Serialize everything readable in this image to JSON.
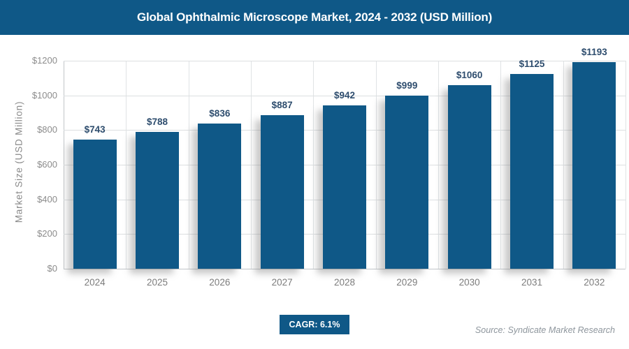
{
  "header": {
    "title": "Global Ophthalmic Microscope Market, 2024 - 2032 (USD Million)"
  },
  "chart_data": {
    "type": "bar",
    "title": "Global Ophthalmic Microscope Market, 2024 - 2032 (USD Million)",
    "categories": [
      "2024",
      "2025",
      "2026",
      "2027",
      "2028",
      "2029",
      "2030",
      "2031",
      "2032"
    ],
    "values": [
      743,
      788,
      836,
      887,
      942,
      999,
      1060,
      1125,
      1193
    ],
    "value_labels": [
      "$743",
      "$788",
      "$836",
      "$887",
      "$942",
      "$999",
      "$1060",
      "$1125",
      "$1193"
    ],
    "xlabel": "",
    "ylabel": "Market Size (USD Million)",
    "ylim": [
      0,
      1200
    ],
    "ytick_step": 200,
    "ytick_labels": [
      "$0",
      "$200",
      "$400",
      "$600",
      "$800",
      "$1000",
      "$1200"
    ],
    "grid": true,
    "legend": "none",
    "bar_color": "#0f5887"
  },
  "footer": {
    "cagr_label": "CAGR: 6.1%",
    "source": "Source: Syndicate Market Research"
  },
  "colors": {
    "accent_blue": "#0f5887",
    "value_label_text": "#2e4d6e",
    "axis_text": "#8c8c8c",
    "gridline": "#dcdfe1",
    "axis_line": "#c2c6c9",
    "source_text": "#8e969d",
    "title_text": "#ffffff",
    "background": "#ffffff"
  }
}
